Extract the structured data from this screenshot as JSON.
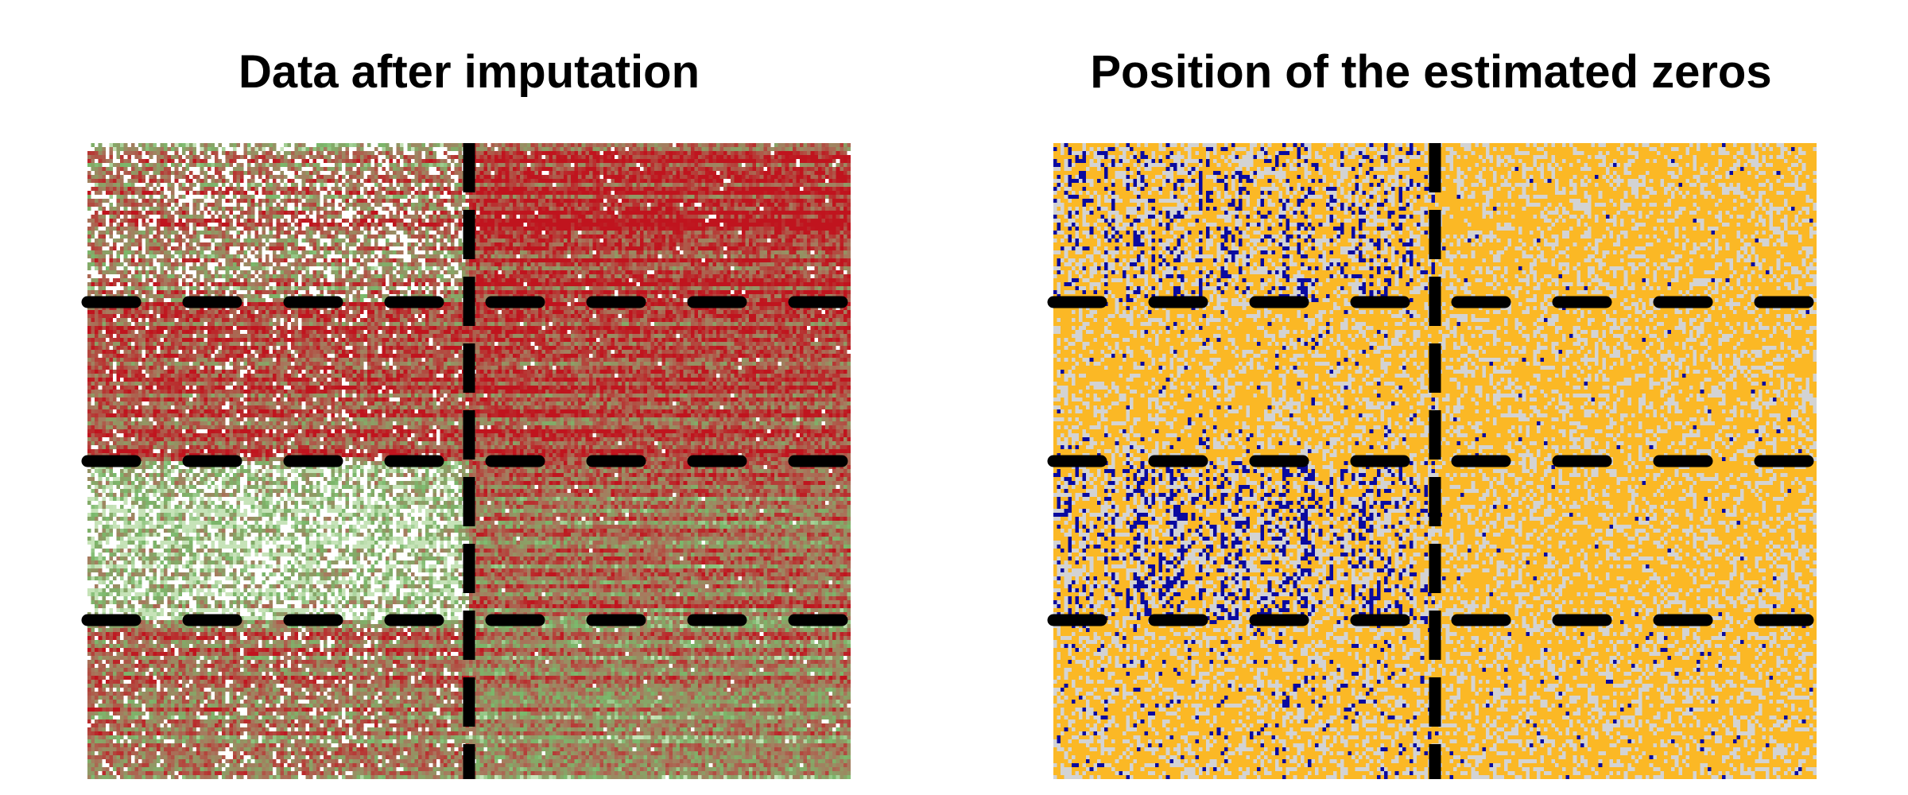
{
  "chart_data": [
    {
      "type": "heatmap",
      "title": "Data after imputation",
      "xlabel": "",
      "ylabel": "",
      "grid": false,
      "rows": 160,
      "cols": 210,
      "col_partition_fraction": [
        0.5
      ],
      "row_partition_fraction": [
        0.25,
        0.5,
        0.75
      ],
      "colors": {
        "high": "#c0141e",
        "mid": "#a67a5e",
        "low": "#7ab86b",
        "lightest": "#c6e3b8",
        "missing_or_zero": "#ffffff"
      },
      "blocks": [
        {
          "row_group": 1,
          "col_group": 1,
          "pattern": "mixed red, light green and white"
        },
        {
          "row_group": 1,
          "col_group": 2,
          "pattern": "mostly red"
        },
        {
          "row_group": 2,
          "col_group": 1,
          "pattern": "red with some green, white speckles"
        },
        {
          "row_group": 2,
          "col_group": 2,
          "pattern": "red with greenish horizontal stripes"
        },
        {
          "row_group": 3,
          "col_group": 1,
          "pattern": "light green and white"
        },
        {
          "row_group": 3,
          "col_group": 2,
          "pattern": "mixed red and green"
        },
        {
          "row_group": 4,
          "col_group": 1,
          "pattern": "mixed red and green with white"
        },
        {
          "row_group": 4,
          "col_group": 2,
          "pattern": "mixed green and red"
        }
      ]
    },
    {
      "type": "heatmap",
      "title": "Position of the estimated zeros",
      "xlabel": "",
      "ylabel": "",
      "grid": false,
      "rows": 160,
      "cols": 210,
      "col_partition_fraction": [
        0.5
      ],
      "row_partition_fraction": [
        0.25,
        0.5,
        0.75
      ],
      "colors": {
        "background": "#fbb825",
        "light": "#d3d3d3",
        "estimated_zero": "#0a0aa0"
      },
      "blocks": [
        {
          "row_group": 1,
          "col_group": 1,
          "estimated_zero_density": 0.16,
          "light_density": 0.3
        },
        {
          "row_group": 1,
          "col_group": 2,
          "estimated_zero_density": 0.008,
          "light_density": 0.3
        },
        {
          "row_group": 2,
          "col_group": 1,
          "estimated_zero_density": 0.03,
          "light_density": 0.3
        },
        {
          "row_group": 2,
          "col_group": 2,
          "estimated_zero_density": 0.01,
          "light_density": 0.3
        },
        {
          "row_group": 3,
          "col_group": 1,
          "estimated_zero_density": 0.2,
          "light_density": 0.3
        },
        {
          "row_group": 3,
          "col_group": 2,
          "estimated_zero_density": 0.01,
          "light_density": 0.3
        },
        {
          "row_group": 4,
          "col_group": 1,
          "estimated_zero_density": 0.05,
          "light_density": 0.3
        },
        {
          "row_group": 4,
          "col_group": 2,
          "estimated_zero_density": 0.02,
          "light_density": 0.3
        }
      ]
    }
  ]
}
